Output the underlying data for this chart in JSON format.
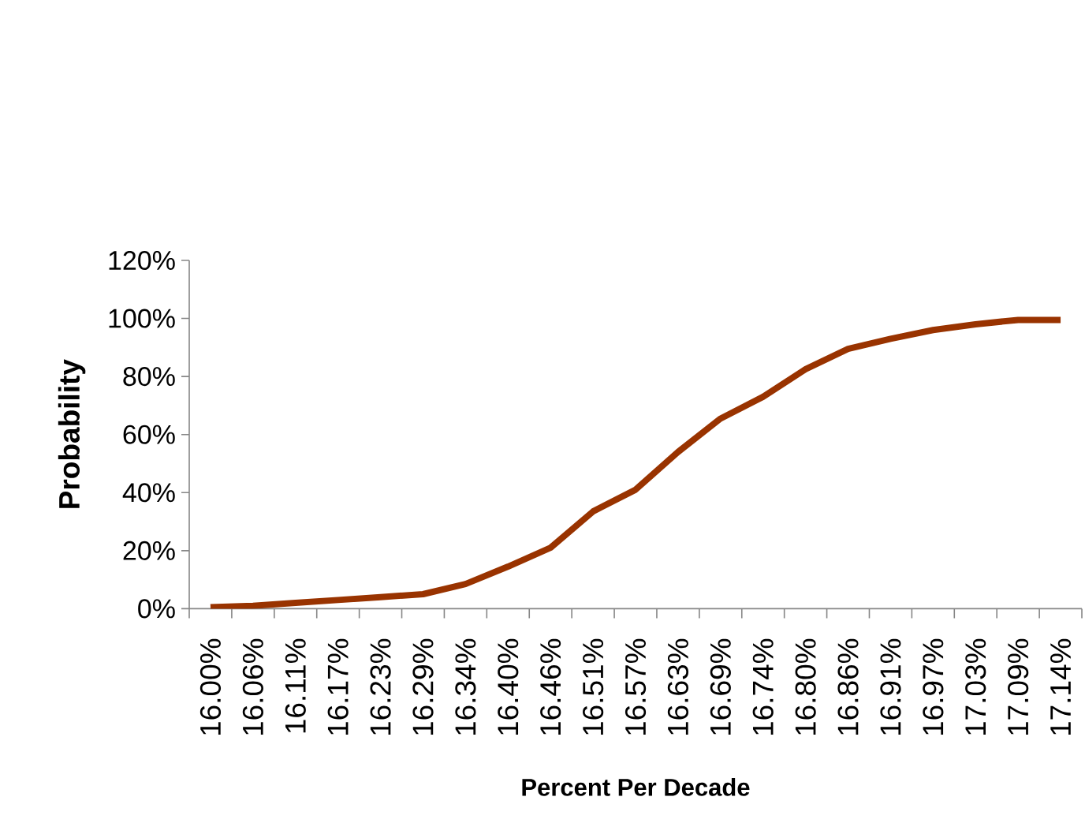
{
  "chart_data": {
    "type": "line",
    "xlabel": "Percent Per Decade",
    "ylabel": "Probability",
    "categories": [
      "16.00%",
      "16.06%",
      "16.11%",
      "16.17%",
      "16.23%",
      "16.29%",
      "16.34%",
      "16.40%",
      "16.46%",
      "16.51%",
      "16.57%",
      "16.63%",
      "16.69%",
      "16.74%",
      "16.80%",
      "16.86%",
      "16.91%",
      "16.97%",
      "17.03%",
      "17.09%",
      "17.14%"
    ],
    "series": [
      {
        "color": "#993300",
        "values": [
          0.5,
          1,
          2,
          3,
          4,
          5,
          8.5,
          14.5,
          21,
          33.5,
          41,
          54,
          65.5,
          73,
          82.5,
          89.5,
          93,
          96,
          98,
          99.5,
          99.5
        ]
      }
    ],
    "ylim": [
      0,
      120
    ],
    "yticks": [
      {
        "value": 0,
        "label": "0%"
      },
      {
        "value": 20,
        "label": "20%"
      },
      {
        "value": 40,
        "label": "40%"
      },
      {
        "value": 60,
        "label": "60%"
      },
      {
        "value": 80,
        "label": "80%"
      },
      {
        "value": 100,
        "label": "100%"
      },
      {
        "value": 120,
        "label": "120%"
      }
    ]
  }
}
